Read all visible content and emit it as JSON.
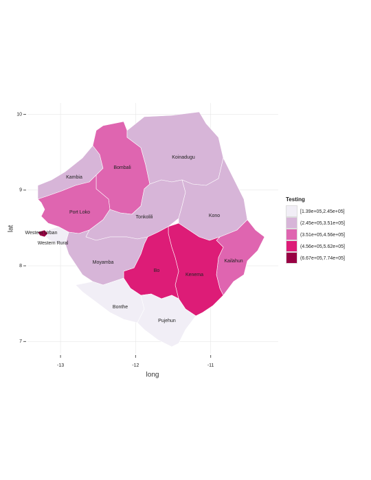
{
  "chart_data": {
    "type": "map",
    "x_label": "long",
    "y_label": "lat",
    "xlim": [
      -13.44,
      -10.1
    ],
    "ylim": [
      6.84,
      10.15
    ],
    "xticks": [
      -13,
      -12,
      -11
    ],
    "yticks": [
      7,
      8,
      9,
      10
    ],
    "grid": true,
    "legend": {
      "title": "Testing",
      "position": "right",
      "bins": [
        {
          "label": "[1.39e+05,2.45e+05]",
          "color": "#f1eef6"
        },
        {
          "label": "(2.45e+05,3.51e+05]",
          "color": "#d7b5d8"
        },
        {
          "label": "(3.51e+05,4.56e+05]",
          "color": "#df65b0"
        },
        {
          "label": "(4.56e+05,5.62e+05]",
          "color": "#dd1c77"
        },
        {
          "label": "(6.67e+05,7.74e+05]",
          "color": "#980043"
        }
      ]
    },
    "regions": [
      {
        "name": "Kambia",
        "bin": 1
      },
      {
        "name": "Bombali",
        "bin": 2
      },
      {
        "name": "Koinadugu",
        "bin": 1
      },
      {
        "name": "Port Loko",
        "bin": 2
      },
      {
        "name": "Tonkolili",
        "bin": 1
      },
      {
        "name": "Kono",
        "bin": 1
      },
      {
        "name": "Kailahun",
        "bin": 2
      },
      {
        "name": "Kenema",
        "bin": 3
      },
      {
        "name": "Bo",
        "bin": 3
      },
      {
        "name": "Moyamba",
        "bin": 1
      },
      {
        "name": "Western Rural",
        "bin": 0
      },
      {
        "name": "Western Urban",
        "bin": 4
      },
      {
        "name": "Bonthe",
        "bin": 0
      },
      {
        "name": "Pujehun",
        "bin": 0
      }
    ]
  }
}
